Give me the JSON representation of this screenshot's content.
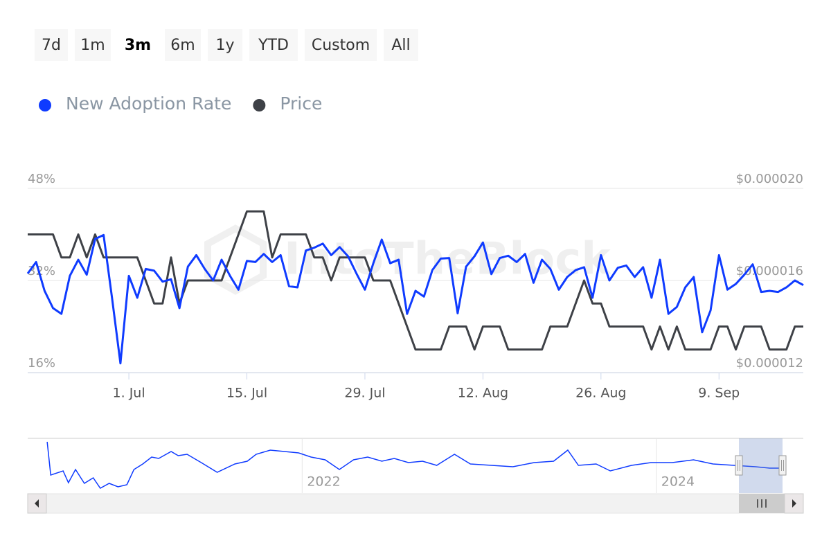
{
  "range_selector": {
    "buttons": [
      "7d",
      "1m",
      "3m",
      "6m",
      "1y",
      "YTD",
      "Custom",
      "All"
    ],
    "selected_index": 2
  },
  "chart_data": {
    "type": "line",
    "watermark": "IntoTheBlock",
    "categories": [
      null,
      null,
      null,
      null,
      null,
      null,
      null,
      null,
      null,
      null,
      null,
      null,
      "1. Jul",
      null,
      null,
      null,
      null,
      null,
      null,
      null,
      null,
      null,
      null,
      null,
      null,
      null,
      "15. Jul",
      null,
      null,
      null,
      null,
      null,
      null,
      null,
      null,
      null,
      null,
      null,
      null,
      null,
      "29. Jul",
      null,
      null,
      null,
      null,
      null,
      null,
      null,
      null,
      null,
      null,
      null,
      null,
      null,
      "12. Aug",
      null,
      null,
      null,
      null,
      null,
      null,
      null,
      null,
      null,
      null,
      null,
      null,
      null,
      "26. Aug",
      null,
      null,
      null,
      null,
      null,
      null,
      null,
      null,
      null,
      null,
      null,
      null,
      null,
      "9. Sep",
      null,
      null,
      null,
      null,
      null,
      null,
      null,
      null,
      null,
      null
    ],
    "series": [
      {
        "name": "New Adoption Rate",
        "color": "#0f3bff",
        "values": [
          33.2,
          35.2,
          30.2,
          27.2,
          26.2,
          32.8,
          35.6,
          33,
          39.2,
          39.9,
          29,
          17.6,
          32.8,
          29,
          34,
          33.7,
          31.8,
          32.2,
          27.2,
          34.4,
          36.4,
          34,
          32,
          35.6,
          32.8,
          30.4,
          35.4,
          35.2,
          36.6,
          35.2,
          36.4,
          31,
          30.8,
          37.2,
          37.7,
          38.4,
          36.4,
          37.8,
          36.2,
          33.2,
          30.4,
          35,
          39.1,
          35,
          35.6,
          26.2,
          30.2,
          29.2,
          33.8,
          35.8,
          35.9,
          26.3,
          34.4,
          36.2,
          38.6,
          33.1,
          35.9,
          36.3,
          35.2,
          36.6,
          31.6,
          35.6,
          34,
          30.4,
          32.6,
          33.8,
          34.3,
          29,
          36.4,
          32,
          34.2,
          34.6,
          32.6,
          34.3,
          29,
          35.6,
          26.2,
          27.4,
          30.8,
          32.6,
          23,
          26.8,
          36.4,
          30.4,
          31.4,
          33,
          34.8,
          30,
          30.2,
          30,
          30.8,
          32,
          31.2
        ]
      },
      {
        "name": "Price",
        "color": "#3e4147",
        "axis": "y2",
        "values": [
          1.8e-05,
          1.8e-05,
          1.8e-05,
          1.8e-05,
          1.7e-05,
          1.7e-05,
          1.8e-05,
          1.7e-05,
          1.8e-05,
          1.7e-05,
          1.7e-05,
          1.7e-05,
          1.7e-05,
          1.7e-05,
          1.6e-05,
          1.5e-05,
          1.5e-05,
          1.7e-05,
          1.5e-05,
          1.6e-05,
          1.6e-05,
          1.6e-05,
          1.6e-05,
          1.6e-05,
          1.7e-05,
          1.8e-05,
          1.9e-05,
          1.9e-05,
          1.9e-05,
          1.7e-05,
          1.8e-05,
          1.8e-05,
          1.8e-05,
          1.8e-05,
          1.7e-05,
          1.7e-05,
          1.6e-05,
          1.7e-05,
          1.7e-05,
          1.7e-05,
          1.7e-05,
          1.6e-05,
          1.6e-05,
          1.6e-05,
          1.5e-05,
          1.4e-05,
          1.3e-05,
          1.3e-05,
          1.3e-05,
          1.3e-05,
          1.4e-05,
          1.4e-05,
          1.4e-05,
          1.3e-05,
          1.4e-05,
          1.4e-05,
          1.4e-05,
          1.3e-05,
          1.3e-05,
          1.3e-05,
          1.3e-05,
          1.3e-05,
          1.4e-05,
          1.4e-05,
          1.4e-05,
          1.5e-05,
          1.6e-05,
          1.5e-05,
          1.5e-05,
          1.4e-05,
          1.4e-05,
          1.4e-05,
          1.4e-05,
          1.4e-05,
          1.3e-05,
          1.4e-05,
          1.3e-05,
          1.4e-05,
          1.3e-05,
          1.3e-05,
          1.3e-05,
          1.3e-05,
          1.4e-05,
          1.4e-05,
          1.3e-05,
          1.4e-05,
          1.4e-05,
          1.4e-05,
          1.3e-05,
          1.3e-05,
          1.3e-05,
          1.4e-05,
          1.4e-05
        ]
      }
    ],
    "ylim": [
      16,
      48
    ],
    "yticks": [
      {
        "value": 16,
        "label": "16%"
      },
      {
        "value": 32,
        "label": "32%"
      },
      {
        "value": 48,
        "label": "48%"
      }
    ],
    "y2lim": [
      1.2e-05,
      2e-05
    ],
    "y2ticks": [
      {
        "value": 1.2e-05,
        "label": "$0.000012"
      },
      {
        "value": 1.6e-05,
        "label": "$0.000016"
      },
      {
        "value": 2e-05,
        "label": "$0.000020"
      }
    ],
    "grid": true,
    "navigator": {
      "x": [
        2020.56,
        2020.58,
        2020.65,
        2020.68,
        2020.72,
        2020.77,
        2020.82,
        2020.86,
        2020.91,
        2020.96,
        2021.01,
        2021.05,
        2021.1,
        2021.15,
        2021.19,
        2021.26,
        2021.3,
        2021.35,
        2021.43,
        2021.52,
        2021.62,
        2021.69,
        2021.74,
        2021.82,
        2021.9,
        2021.98,
        2022.05,
        2022.13,
        2022.21,
        2022.29,
        2022.37,
        2022.45,
        2022.52,
        2022.6,
        2022.68,
        2022.76,
        2022.86,
        2022.95,
        2023.07,
        2023.19,
        2023.31,
        2023.42,
        2023.5,
        2023.56,
        2023.66,
        2023.74,
        2023.86,
        2023.97,
        2024.09,
        2024.21,
        2024.32,
        2024.44,
        2024.56,
        2024.64,
        2024.72
      ],
      "values": [
        48,
        24,
        27,
        18.5,
        28,
        18,
        22,
        14.5,
        18,
        15.5,
        17,
        28,
        32,
        37,
        36,
        41,
        38,
        39,
        33,
        26,
        32,
        34,
        39,
        42,
        41,
        40,
        37,
        35,
        28,
        35,
        37,
        34,
        36,
        33,
        34,
        31,
        39,
        32,
        31,
        30,
        33,
        34,
        42,
        31,
        32,
        27,
        31,
        33,
        33,
        35,
        32,
        31,
        30,
        29,
        29
      ],
      "xlim": [
        2020.45,
        2024.83
      ],
      "xticks": [
        2022,
        2024
      ]
    }
  }
}
